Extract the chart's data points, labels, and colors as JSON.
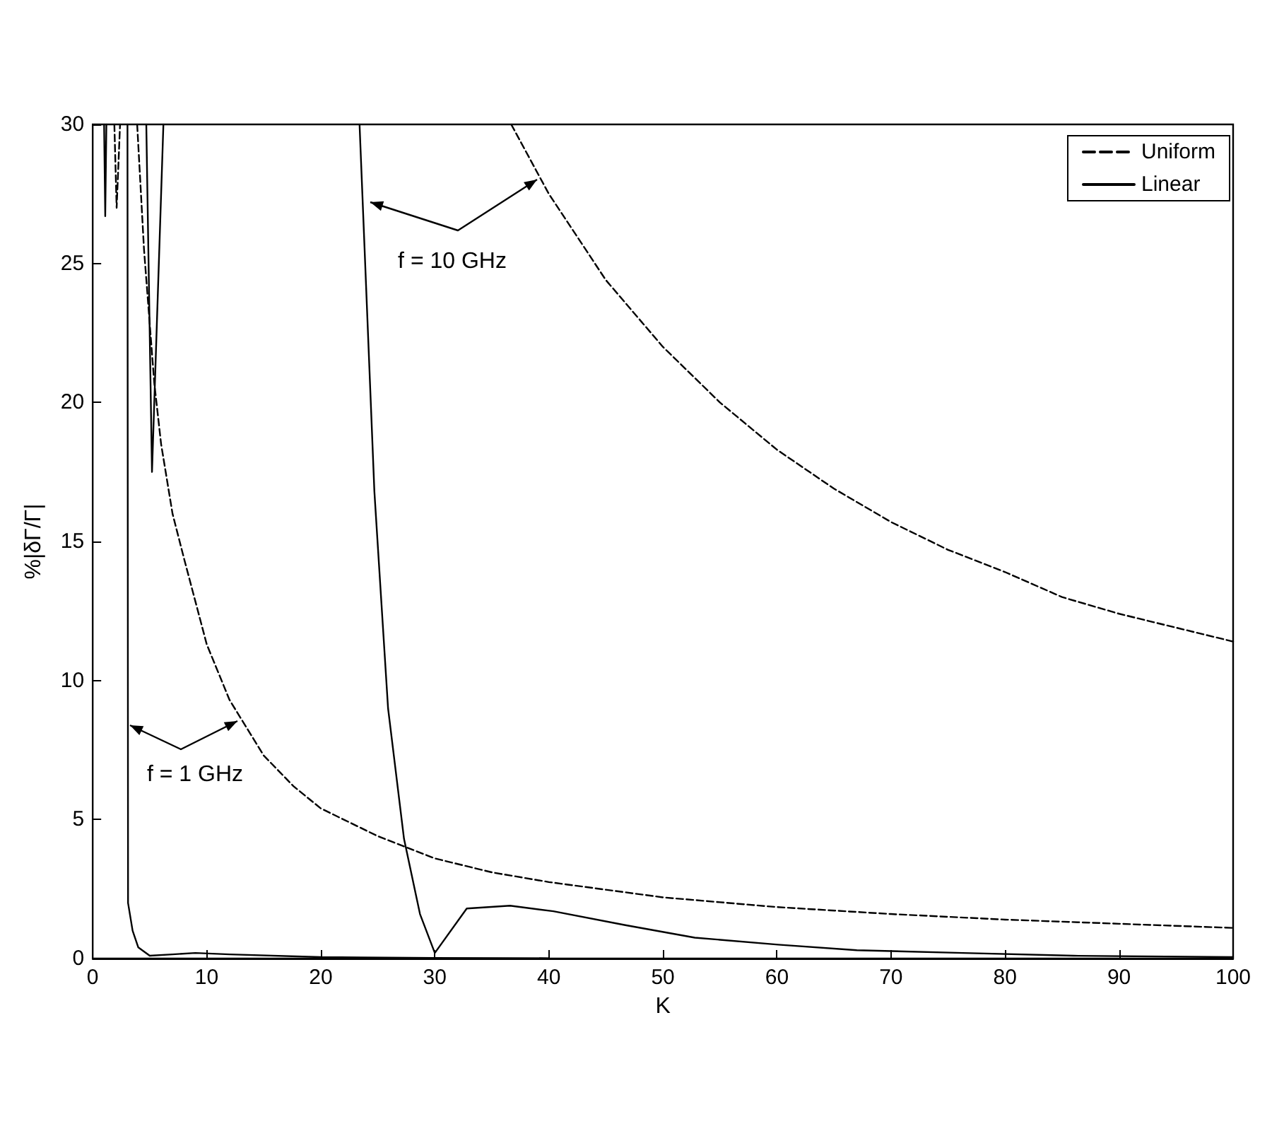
{
  "chart_data": {
    "type": "line",
    "xlabel": "K",
    "ylabel": "%|δΓ/Γ|",
    "xlim": [
      0,
      100
    ],
    "xticks": [
      0,
      10,
      20,
      30,
      40,
      50,
      60,
      70,
      80,
      90,
      100
    ],
    "ylim": [
      0,
      30
    ],
    "yticks": [
      0,
      5,
      10,
      15,
      20,
      25,
      30
    ],
    "grid": false,
    "legend": "top right",
    "marker": "none",
    "annotations": [
      "f = 1 GHz",
      "f = 10 GHz"
    ],
    "series": [
      {
        "name": "Uniform",
        "color": "#000000",
        "line_style": "dashed",
        "x": [
          3.9,
          4.5,
          5.4,
          6,
          7,
          8,
          10,
          12,
          15,
          17.6,
          20,
          25,
          30,
          35,
          40,
          50,
          60,
          70,
          80,
          90,
          100
        ],
        "values": [
          30,
          25.5,
          20.7,
          18.5,
          16,
          14.4,
          11.3,
          9.3,
          7.3,
          6.2,
          5.4,
          4.4,
          3.6,
          3.1,
          2.75,
          2.2,
          1.85,
          1.6,
          1.4,
          1.25,
          1.1
        ]
      },
      {
        "color": "#000000",
        "line_style": "dashed",
        "x": [
          36.7,
          40,
          45,
          50,
          55,
          60,
          65,
          70,
          75,
          80,
          85,
          90,
          95,
          100
        ],
        "values": [
          30,
          27.5,
          24.4,
          22,
          20,
          18.3,
          16.9,
          15.7,
          14.7,
          13.9,
          13,
          12.4,
          11.9,
          11.4
        ]
      },
      {
        "name": "Linear",
        "color": "#000000",
        "line_style": "solid",
        "x": [
          3.05,
          3.1,
          3.5,
          4,
          5,
          7,
          9,
          12,
          20,
          30,
          40
        ],
        "values": [
          30,
          2,
          1,
          0.4,
          0.1,
          0.15,
          0.2,
          0.15,
          0.05,
          0.02,
          0.01
        ]
      },
      {
        "color": "#000000",
        "line_style": "solid",
        "x": [
          23.4,
          24.7,
          25.9,
          27.3,
          28.7,
          30,
          32.8,
          36.6,
          40.4,
          46.7,
          52.8,
          60.1,
          67,
          76.3,
          86,
          100
        ],
        "values": [
          30,
          16.8,
          9,
          4.3,
          1.6,
          0.2,
          1.8,
          1.9,
          1.7,
          1.2,
          0.75,
          0.5,
          0.3,
          0.2,
          0.1,
          0.05
        ]
      },
      {
        "color": "#000000",
        "line_style": "dashed",
        "x": [
          1.9,
          2.1,
          2.4
        ],
        "values": [
          30,
          27,
          30
        ]
      },
      {
        "color": "#000000",
        "line_style": "solid",
        "x": [
          1,
          1.1,
          1.2
        ],
        "values": [
          30,
          26.7,
          30
        ]
      },
      {
        "color": "#000000",
        "line_style": "solid",
        "x": [
          4.7,
          5.2,
          6.2
        ],
        "values": [
          30,
          17.5,
          30
        ]
      }
    ]
  }
}
